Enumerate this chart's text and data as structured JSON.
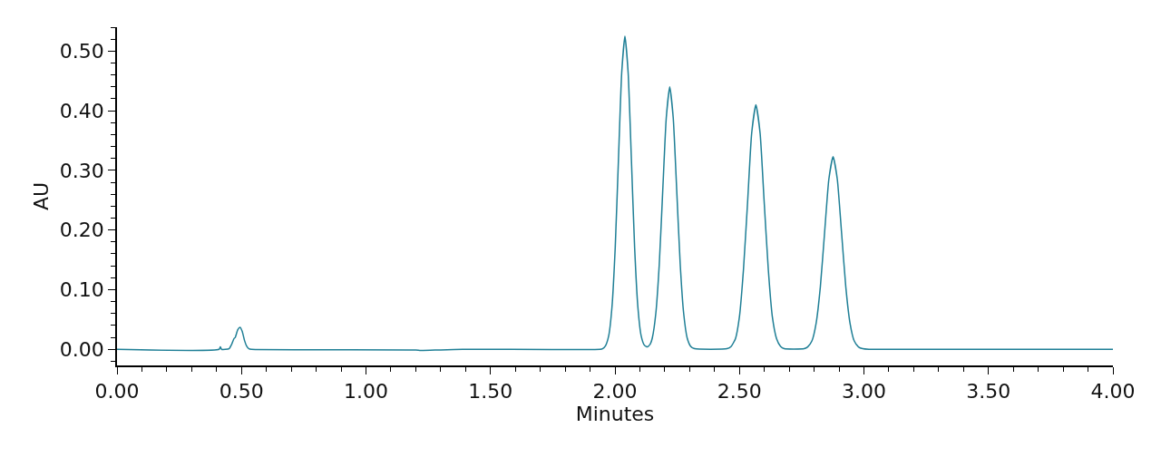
{
  "chart_data": {
    "type": "line",
    "xlabel": "Minutes",
    "ylabel": "AU",
    "x": [
      0,
      0.41,
      0.415,
      0.42,
      0.45,
      0.46,
      0.47,
      0.475,
      0.485,
      0.494,
      0.503,
      0.512,
      0.52,
      0.53,
      0.54,
      1.2,
      1.22,
      1.3,
      1.4,
      1.94,
      1.95,
      1.962,
      1.975,
      1.988,
      2.001,
      2.014,
      2.027,
      2.04,
      2.053,
      2.066,
      2.079,
      2.092,
      2.105,
      2.118,
      2.13,
      2.142,
      2.15,
      2.164,
      2.178,
      2.192,
      2.206,
      2.22,
      2.234,
      2.248,
      2.262,
      2.276,
      2.29,
      2.304,
      2.32,
      2.45,
      2.467,
      2.484,
      2.5,
      2.516,
      2.533,
      2.549,
      2.566,
      2.583,
      2.599,
      2.616,
      2.632,
      2.649,
      2.665,
      2.68,
      2.76,
      2.774,
      2.791,
      2.808,
      2.825,
      2.842,
      2.859,
      2.876,
      2.893,
      2.91,
      2.927,
      2.944,
      2.961,
      2.978,
      2.995,
      3.02,
      4.0
    ],
    "series": [
      {
        "color": "#1f7f96",
        "values": [
          0,
          0,
          0.004,
          0,
          0.001,
          0.008,
          0.018,
          0.02,
          0.033,
          0.037,
          0.03,
          0.015,
          0.006,
          0.001,
          0,
          -0.001,
          -0.002,
          -0.001,
          0,
          0,
          0.001,
          0.006,
          0.023,
          0.071,
          0.17,
          0.318,
          0.463,
          0.525,
          0.463,
          0.318,
          0.17,
          0.071,
          0.023,
          0.007,
          0.004,
          0.009,
          0.019,
          0.06,
          0.143,
          0.267,
          0.388,
          0.44,
          0.388,
          0.267,
          0.143,
          0.06,
          0.019,
          0.005,
          0.001,
          0.001,
          0.005,
          0.018,
          0.055,
          0.133,
          0.249,
          0.362,
          0.41,
          0.362,
          0.249,
          0.133,
          0.055,
          0.018,
          0.005,
          0.001,
          0.001,
          0.004,
          0.014,
          0.044,
          0.105,
          0.196,
          0.285,
          0.323,
          0.285,
          0.196,
          0.105,
          0.044,
          0.014,
          0.004,
          0.001,
          0,
          0
        ]
      }
    ],
    "xlim": [
      0,
      4
    ],
    "ylim": [
      -0.027,
      0.54
    ],
    "xticks": [
      {
        "value": 0,
        "label": "0.00"
      },
      {
        "value": 0.5,
        "label": "0.50"
      },
      {
        "value": 1,
        "label": "1.00"
      },
      {
        "value": 1.5,
        "label": "1.50"
      },
      {
        "value": 2,
        "label": "2.00"
      },
      {
        "value": 2.5,
        "label": "2.50"
      },
      {
        "value": 3,
        "label": "3.00"
      },
      {
        "value": 3.5,
        "label": "3.50"
      },
      {
        "value": 4,
        "label": "4.00"
      }
    ],
    "yticks": [
      {
        "value": 0,
        "label": "0.00"
      },
      {
        "value": 0.1,
        "label": "0.10"
      },
      {
        "value": 0.2,
        "label": "0.20"
      },
      {
        "value": 0.3,
        "label": "0.30"
      },
      {
        "value": 0.4,
        "label": "0.40"
      },
      {
        "value": 0.5,
        "label": "0.50"
      }
    ],
    "legend": false,
    "marker": "none",
    "line_style": "solid"
  }
}
